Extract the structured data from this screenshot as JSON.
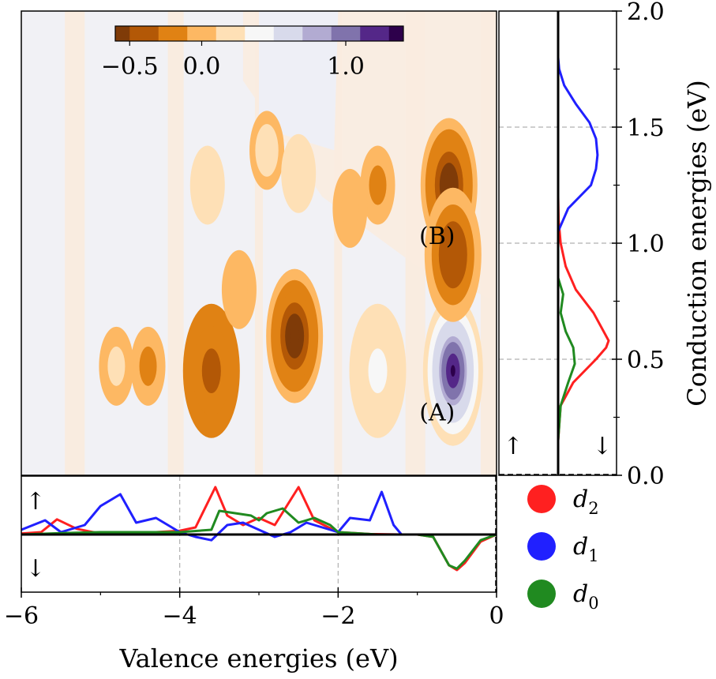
{
  "chart_data": [
    {
      "panel": "main",
      "type": "heatmap",
      "xlim": [
        -6,
        0
      ],
      "ylim": [
        0,
        2.0
      ],
      "colorbar": {
        "ticks": [
          "−0.5",
          "0.0",
          "1.0"
        ],
        "tick_values": [
          -0.5,
          0.0,
          1.0
        ],
        "range": [
          -0.6,
          1.4
        ],
        "colors": [
          "#7f3b08",
          "#b35806",
          "#e08214",
          "#fdb863",
          "#fee0b6",
          "#f7f7f7",
          "#d8daeb",
          "#b2abd2",
          "#8073ac",
          "#542788",
          "#2d004b"
        ]
      },
      "annotations": [
        {
          "text": "(A)",
          "x": -0.75,
          "y": 0.27
        },
        {
          "text": "(B)",
          "x": -0.75,
          "y": 1.03
        }
      ],
      "peaks": [
        {
          "x": -0.55,
          "y": 0.45,
          "value": 1.3
        },
        {
          "x": -0.6,
          "y": 1.25,
          "value": -0.6
        },
        {
          "x": -0.55,
          "y": 0.95,
          "value": -0.4
        },
        {
          "x": -2.55,
          "y": 0.6,
          "value": -0.6
        },
        {
          "x": -3.6,
          "y": 0.45,
          "value": -0.35
        },
        {
          "x": -4.4,
          "y": 0.47,
          "value": -0.15
        },
        {
          "x": -1.5,
          "y": 0.45,
          "value": 0.35
        },
        {
          "x": -2.9,
          "y": 1.4,
          "value": 0.25
        },
        {
          "x": -2.5,
          "y": 1.3,
          "value": 0.2
        },
        {
          "x": -3.65,
          "y": 1.25,
          "value": 0.2
        },
        {
          "x": -4.8,
          "y": 0.47,
          "value": 0.1
        },
        {
          "x": -1.5,
          "y": 1.25,
          "value": -0.15
        },
        {
          "x": -1.85,
          "y": 1.15,
          "value": 0.08
        },
        {
          "x": -3.25,
          "y": 0.8,
          "value": 0.06
        }
      ]
    },
    {
      "panel": "right",
      "type": "line",
      "xlabel": "",
      "ylabel": "Conduction energies (eV)",
      "ylim": [
        0,
        2.0
      ],
      "yticks": [
        "0.0",
        "0.5",
        "1.0",
        "1.5",
        "2.0"
      ],
      "ytick_values": [
        0,
        0.5,
        1.0,
        1.5,
        2.0
      ],
      "spin_labels": [
        "↑",
        "↓"
      ],
      "series": [
        {
          "name": "d₂",
          "color": "#ff2020",
          "y": [
            0.15,
            0.3,
            0.4,
            0.5,
            0.55,
            0.58,
            0.62,
            0.7,
            0.8,
            0.9,
            1.0,
            1.1,
            1.2
          ],
          "values": [
            0,
            0.05,
            0.3,
            0.75,
            0.95,
            1.0,
            0.9,
            0.7,
            0.35,
            0.15,
            0.05,
            0.01,
            0
          ]
        },
        {
          "name": "d₁",
          "color": "#2020ff",
          "y": [
            1.05,
            1.15,
            1.25,
            1.32,
            1.38,
            1.45,
            1.52,
            1.6,
            1.68,
            1.75,
            1.8
          ],
          "values": [
            0,
            0.2,
            0.65,
            0.75,
            0.78,
            0.75,
            0.62,
            0.35,
            0.12,
            0.02,
            0
          ]
        },
        {
          "name": "d₀",
          "color": "#208a20",
          "y": [
            0.15,
            0.3,
            0.4,
            0.48,
            0.55,
            0.62,
            0.7,
            0.78,
            0.85
          ],
          "values": [
            0,
            0.05,
            0.2,
            0.33,
            0.3,
            0.15,
            0.05,
            0.1,
            0
          ]
        }
      ]
    },
    {
      "panel": "bottom",
      "type": "line",
      "xlabel": "Valence energies (eV)",
      "xlim": [
        -6,
        0
      ],
      "xticks": [
        "−6",
        "−4",
        "−2",
        "0"
      ],
      "xtick_values": [
        -6,
        -4,
        -2,
        0
      ],
      "spin_labels": [
        "↑",
        "↓"
      ],
      "series": [
        {
          "name": "d₂",
          "color": "#ff2020",
          "x": [
            -6.0,
            -5.75,
            -5.55,
            -5.3,
            -5.0,
            -4.7,
            -4.3,
            -4.0,
            -3.8,
            -3.55,
            -3.4,
            -3.2,
            -3.0,
            -2.8,
            -2.5,
            -2.3,
            -2.0,
            -1.6,
            -1.2,
            -1.0,
            -0.8,
            -0.6,
            -0.5,
            -0.4,
            -0.2,
            0.0
          ],
          "values": [
            0.02,
            0.05,
            0.32,
            0.12,
            0.02,
            0.05,
            0.05,
            0.08,
            0.15,
            1.0,
            0.4,
            0.2,
            0.35,
            0.2,
            1.0,
            0.3,
            0.05,
            0.01,
            0.0,
            0.0,
            -0.05,
            -0.65,
            -0.75,
            -0.6,
            -0.15,
            0.0
          ]
        },
        {
          "name": "d₁",
          "color": "#2020ff",
          "x": [
            -6.0,
            -5.7,
            -5.5,
            -5.2,
            -5.0,
            -4.75,
            -4.55,
            -4.3,
            -4.0,
            -3.8,
            -3.6,
            -3.4,
            -3.2,
            -3.0,
            -2.8,
            -2.6,
            -2.4,
            -2.2,
            -2.0,
            -1.85,
            -1.6,
            -1.45,
            -1.3,
            -1.2,
            -1.0,
            0.0
          ],
          "values": [
            0.1,
            0.3,
            0.05,
            0.2,
            0.6,
            0.85,
            0.25,
            0.35,
            0.05,
            -0.05,
            -0.12,
            0.2,
            0.25,
            0.1,
            -0.05,
            0.05,
            0.25,
            0.15,
            0.05,
            0.35,
            0.3,
            0.9,
            0.2,
            0.0,
            0.0,
            0.0
          ]
        },
        {
          "name": "d₀",
          "color": "#208a20",
          "x": [
            -6.0,
            -5.5,
            -5.0,
            -4.5,
            -4.0,
            -3.6,
            -3.5,
            -3.3,
            -3.1,
            -3.0,
            -2.9,
            -2.7,
            -2.5,
            -2.3,
            -2.1,
            -2.0,
            -1.5,
            -1.0,
            -0.8,
            -0.6,
            -0.5,
            -0.4,
            -0.2,
            0.0
          ],
          "values": [
            0.0,
            0.03,
            0.05,
            0.05,
            0.05,
            0.1,
            0.5,
            0.45,
            0.4,
            0.3,
            0.45,
            0.55,
            0.25,
            0.35,
            0.2,
            0.05,
            0.0,
            0.0,
            -0.05,
            -0.65,
            -0.72,
            -0.55,
            -0.12,
            0.0
          ]
        }
      ]
    }
  ],
  "legend": [
    {
      "label": "d",
      "sub": "2",
      "color": "#ff2020"
    },
    {
      "label": "d",
      "sub": "1",
      "color": "#2020ff"
    },
    {
      "label": "d",
      "sub": "0",
      "color": "#208a20"
    }
  ]
}
